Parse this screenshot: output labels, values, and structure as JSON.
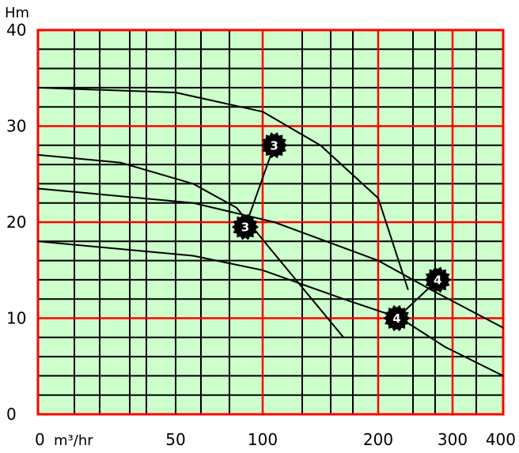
{
  "chart_data": {
    "type": "line",
    "ylabel": "Hm",
    "x_unit": "m³/hr",
    "ylim": [
      0,
      40
    ],
    "x_scale": "nonlinear",
    "y_ticks": [
      "0",
      "10",
      "20",
      "30",
      "40"
    ],
    "x_ticks": [
      {
        "value": 0,
        "label": "0"
      },
      {
        "value": 50,
        "label": "50"
      },
      {
        "value": 100,
        "label": "100"
      },
      {
        "value": 200,
        "label": "200"
      },
      {
        "value": 300,
        "label": "300"
      },
      {
        "value": 400,
        "label": "400"
      }
    ],
    "grid": true,
    "colors": {
      "background": "#ccffcc",
      "major_grid": "#ff0000",
      "minor_grid": "#000000",
      "curves": "#000000"
    },
    "series": [
      {
        "x": [
          0,
          50,
          100,
          150,
          200,
          240
        ],
        "y": [
          34,
          33.5,
          31.5,
          28,
          22.5,
          13
        ]
      },
      {
        "x": [
          0,
          30,
          60,
          85,
          115,
          170
        ],
        "y": [
          27,
          26.2,
          24,
          21.5,
          16,
          8
        ]
      },
      {
        "x": [
          0,
          60,
          110,
          200,
          270,
          400
        ],
        "y": [
          23.5,
          22,
          20,
          16,
          13,
          9
        ]
      },
      {
        "x": [
          0,
          60,
          100,
          170,
          230,
          290,
          400
        ],
        "y": [
          18,
          16.5,
          15,
          12,
          10,
          7,
          4
        ]
      }
    ],
    "markers": [
      {
        "label": "3",
        "x": 110,
        "y": 28
      },
      {
        "label": "3",
        "x": 90,
        "y": 19.5
      },
      {
        "label": "4",
        "x": 280,
        "y": 14
      },
      {
        "label": "4",
        "x": 225,
        "y": 10
      }
    ],
    "marker_links": [
      [
        0,
        1
      ],
      [
        2,
        3
      ]
    ]
  }
}
